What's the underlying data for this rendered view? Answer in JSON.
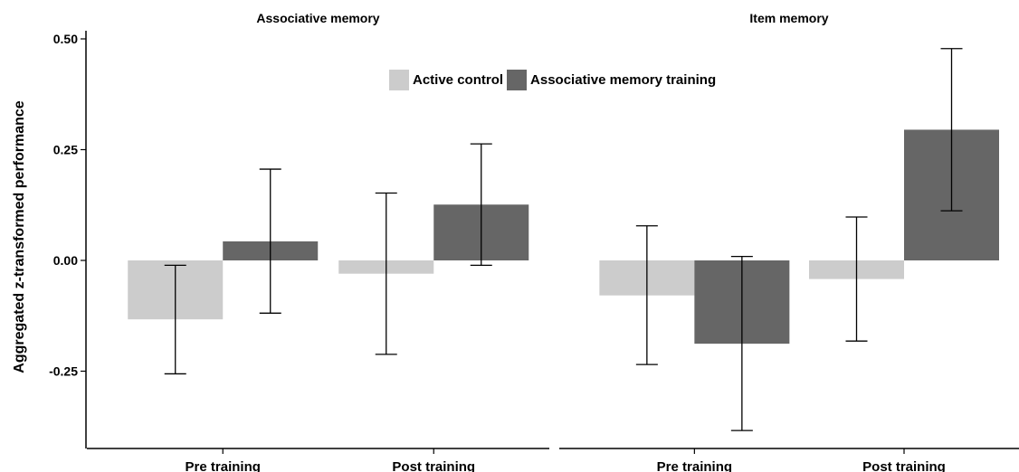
{
  "chart_data": {
    "type": "bar",
    "ylabel": "Aggregated z-transformed performance",
    "ylim": [
      -0.42,
      0.52
    ],
    "yticks": [
      "0.50",
      "0.25",
      "0.00",
      "-0.25"
    ],
    "yticks_values": [
      0.5,
      0.25,
      0.0,
      -0.25
    ],
    "legend": {
      "position": "top-center",
      "entries": [
        {
          "name": "Active control",
          "color": "#cccccc"
        },
        {
          "name": "Associative memory training",
          "color": "#666666"
        }
      ]
    },
    "panels": [
      {
        "title": "Associative memory",
        "categories": [
          "Pre training",
          "Post training"
        ],
        "series": [
          {
            "name": "Active control",
            "values": [
              -0.133,
              -0.03
            ],
            "error_low": [
              -0.256,
              -0.212
            ],
            "error_high": [
              -0.011,
              0.152
            ]
          },
          {
            "name": "Associative memory training",
            "values": [
              0.043,
              0.126
            ],
            "error_low": [
              -0.119,
              -0.011
            ],
            "error_high": [
              0.206,
              0.263
            ]
          }
        ]
      },
      {
        "title": "Item memory",
        "categories": [
          "Pre training",
          "Post training"
        ],
        "series": [
          {
            "name": "Active control",
            "values": [
              -0.079,
              -0.042
            ],
            "error_low": [
              -0.235,
              -0.182
            ],
            "error_high": [
              0.078,
              0.098
            ]
          },
          {
            "name": "Associative memory training",
            "values": [
              -0.188,
              0.295
            ],
            "error_low": [
              -0.384,
              0.112
            ],
            "error_high": [
              0.009,
              0.478
            ]
          }
        ]
      }
    ]
  }
}
